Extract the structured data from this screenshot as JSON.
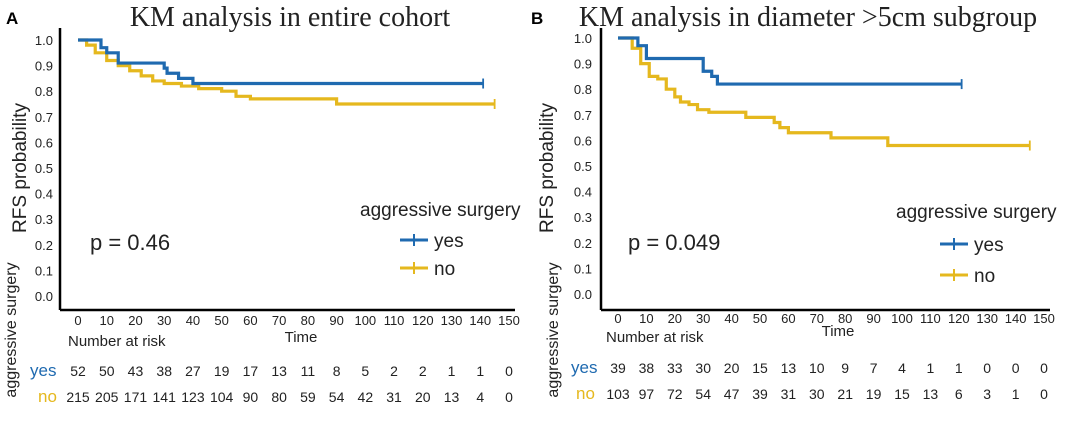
{
  "colors": {
    "yes": "#1F6AB0",
    "no": "#E5B81E",
    "axis": "#000000",
    "text": "#222222"
  },
  "chart_data": [
    {
      "type": "line",
      "panel_label": "A",
      "title": "KM analysis in entire cohort",
      "xlabel": "Time",
      "ylabel": "RFS probability",
      "xlim": [
        0,
        150
      ],
      "ylim": [
        0,
        1
      ],
      "x_ticks": [
        "0",
        "10",
        "20",
        "30",
        "40",
        "50",
        "60",
        "70",
        "80",
        "90",
        "100",
        "110",
        "120",
        "130",
        "140",
        "150"
      ],
      "y_ticks": [
        "0.0",
        "0.1",
        "0.2",
        "0.3",
        "0.4",
        "0.5",
        "0.6",
        "0.7",
        "0.8",
        "0.9",
        "1.0"
      ],
      "p_value": "p = 0.46",
      "legend": {
        "title": "aggressive surgery",
        "position": "right",
        "entries": [
          "yes",
          "no"
        ]
      },
      "series": [
        {
          "name": "yes",
          "x": [
            0,
            8,
            10,
            14,
            30,
            31,
            35,
            40,
            141
          ],
          "y": [
            1.0,
            0.97,
            0.95,
            0.91,
            0.89,
            0.87,
            0.85,
            0.83,
            0.83
          ]
        },
        {
          "name": "no",
          "x": [
            0,
            3,
            6,
            10,
            14,
            18,
            22,
            26,
            30,
            36,
            42,
            50,
            55,
            60,
            90,
            145
          ],
          "y": [
            1.0,
            0.98,
            0.95,
            0.92,
            0.9,
            0.88,
            0.86,
            0.84,
            0.83,
            0.82,
            0.81,
            0.8,
            0.78,
            0.77,
            0.75,
            0.75
          ]
        }
      ],
      "risk_table": {
        "title": "Number at risk",
        "ylabel": "aggressive surgery",
        "rows": [
          {
            "label": "yes",
            "values": [
              "52",
              "50",
              "43",
              "38",
              "27",
              "19",
              "17",
              "13",
              "11",
              "8",
              "5",
              "2",
              "2",
              "1",
              "1",
              "0"
            ]
          },
          {
            "label": "no",
            "values": [
              "215",
              "205",
              "171",
              "141",
              "123",
              "104",
              "90",
              "80",
              "59",
              "54",
              "42",
              "31",
              "20",
              "13",
              "4",
              "0"
            ]
          }
        ]
      }
    },
    {
      "type": "line",
      "panel_label": "B",
      "title": "KM analysis in diameter >5cm subgroup",
      "xlabel": "Time",
      "ylabel": "RFS probability",
      "xlim": [
        0,
        150
      ],
      "ylim": [
        0,
        1
      ],
      "x_ticks": [
        "0",
        "10",
        "20",
        "30",
        "40",
        "50",
        "60",
        "70",
        "80",
        "90",
        "100",
        "110",
        "120",
        "130",
        "140",
        "150"
      ],
      "y_ticks": [
        "0.0",
        "0.1",
        "0.2",
        "0.3",
        "0.4",
        "0.5",
        "0.6",
        "0.7",
        "0.8",
        "0.9",
        "1.0"
      ],
      "p_value": "p = 0.049",
      "legend": {
        "title": "aggressive surgery",
        "position": "right",
        "entries": [
          "yes",
          "no"
        ]
      },
      "series": [
        {
          "name": "yes",
          "x": [
            0,
            7,
            10,
            20,
            30,
            33,
            35,
            121
          ],
          "y": [
            1.0,
            0.97,
            0.92,
            0.92,
            0.87,
            0.85,
            0.82,
            0.82
          ]
        },
        {
          "name": "no",
          "x": [
            0,
            5,
            8,
            11,
            14,
            17,
            20,
            22,
            25,
            28,
            32,
            45,
            55,
            57,
            60,
            75,
            95,
            145
          ],
          "y": [
            1.0,
            0.96,
            0.9,
            0.85,
            0.84,
            0.8,
            0.77,
            0.75,
            0.74,
            0.72,
            0.71,
            0.69,
            0.67,
            0.65,
            0.63,
            0.61,
            0.58,
            0.58
          ]
        }
      ],
      "risk_table": {
        "title": "Number at risk",
        "ylabel": "aggressive surgery",
        "rows": [
          {
            "label": "yes",
            "values": [
              "39",
              "38",
              "33",
              "30",
              "20",
              "15",
              "13",
              "10",
              "9",
              "7",
              "4",
              "1",
              "1",
              "0",
              "0",
              "0"
            ]
          },
          {
            "label": "no",
            "values": [
              "103",
              "97",
              "72",
              "54",
              "47",
              "39",
              "31",
              "30",
              "21",
              "19",
              "15",
              "13",
              "6",
              "3",
              "1",
              "0"
            ]
          }
        ]
      }
    }
  ]
}
